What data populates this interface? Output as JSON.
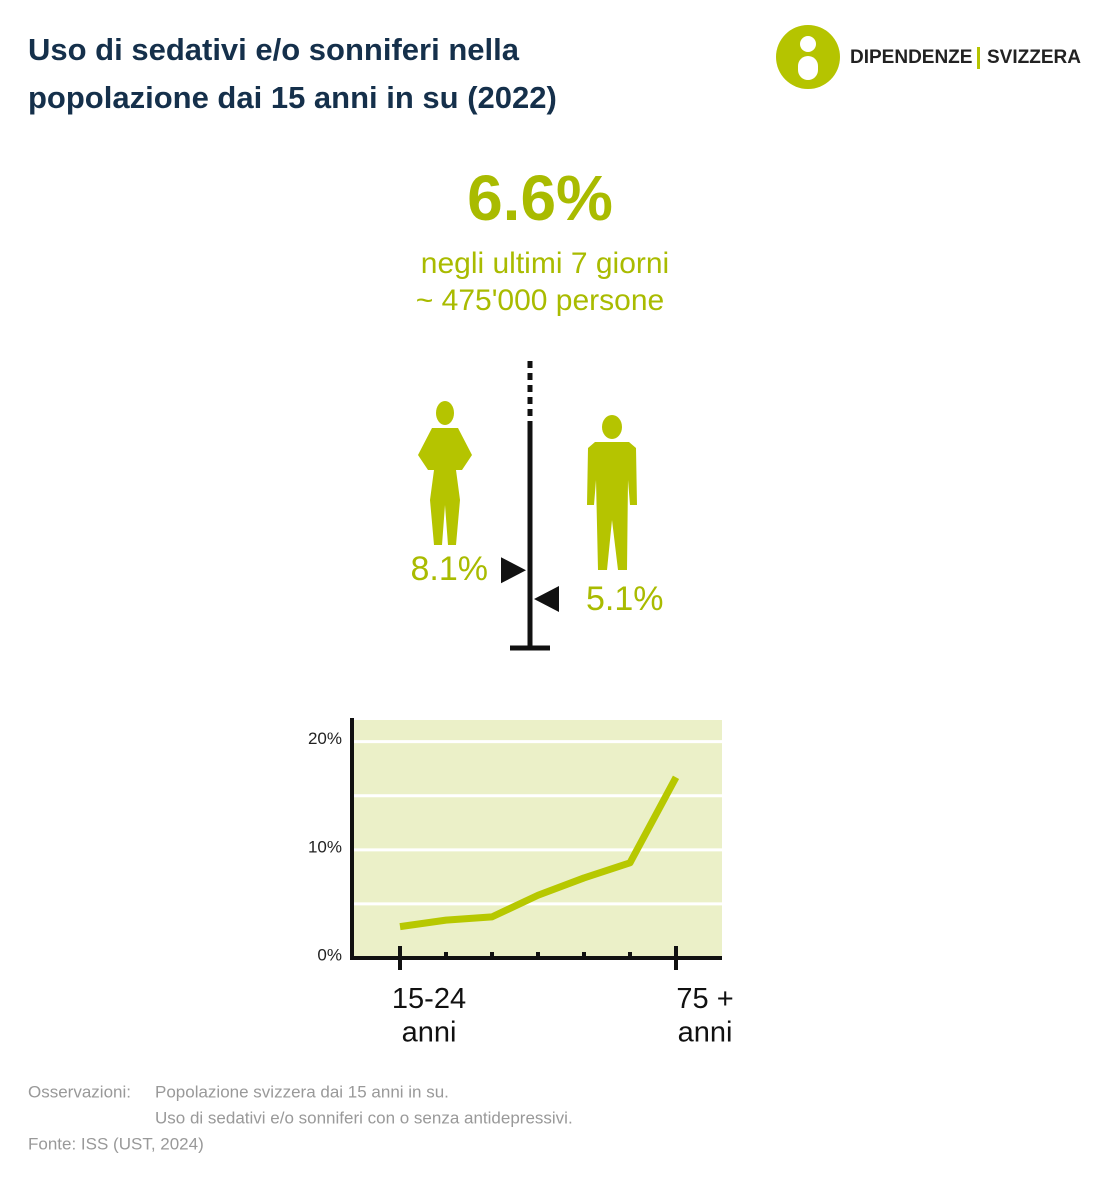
{
  "header": {
    "title": [
      "Uso di sedativi e/o sonniferi nella",
      "popolazione dai 15 anni in su (2022)"
    ],
    "logo": [
      "DIPENDENZE",
      "SVIZZERA"
    ]
  },
  "headline": {
    "value": "6.6%",
    "lines": [
      "negli ultimi 7 giorni",
      "~ 475'000 persone"
    ]
  },
  "gender": {
    "values": [
      8.1,
      5.1
    ],
    "value_labels": [
      "8.1%",
      "5.1%"
    ],
    "ylim": [
      0,
      30
    ],
    "color": "#a9bb00"
  },
  "chart_data": {
    "type": "line",
    "categories": [
      "15-24\nanni",
      null,
      null,
      null,
      null,
      null,
      "75 +\nanni"
    ],
    "series": [
      {
        "color": "#b7c800",
        "values": [
          2.9,
          3.5,
          3.8,
          5.8,
          7.4,
          8.8,
          16.7
        ]
      }
    ],
    "ylim": [
      0,
      22
    ],
    "yticks": [
      {
        "value": 0,
        "label": "0%"
      },
      {
        "value": 5,
        "label": null
      },
      {
        "value": 10,
        "label": "10%"
      },
      {
        "value": 15,
        "label": null
      },
      {
        "value": 20,
        "label": "20%"
      }
    ],
    "grid": true,
    "background": "#ebf0c8"
  },
  "notes": {
    "label": "Osservazioni:",
    "lines": [
      "Popolazione svizzera dai 15 anni in su.",
      "Uso di sedativi e/o sonniferi con o senza antidepressivi."
    ],
    "source": "Fonte: ISS (UST, 2024)"
  }
}
